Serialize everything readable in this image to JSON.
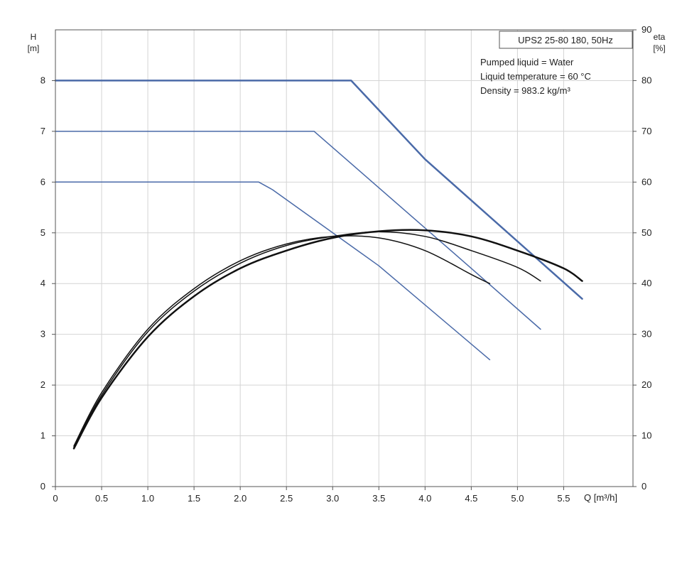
{
  "chart_data": {
    "type": "line",
    "model_label": "UPS2 25-80 180, 50Hz",
    "info_lines": [
      "Pumped liquid = Water",
      "Liquid temperature = 60 °C",
      "Density = 983.2 kg/m³"
    ],
    "left_axis": {
      "label_top": "H",
      "label_unit": "[m]",
      "range": [
        0,
        9.0
      ],
      "ticks": [
        0,
        1,
        2,
        3,
        4,
        5,
        6,
        7,
        8
      ]
    },
    "right_axis": {
      "label_top": "eta",
      "label_unit": "[%]",
      "range": [
        0,
        90
      ],
      "ticks": [
        0,
        10,
        20,
        30,
        40,
        50,
        60,
        70,
        80,
        90
      ]
    },
    "x_axis": {
      "label": "Q [m³/h]",
      "range": [
        0,
        6.25
      ],
      "ticks": [
        0,
        0.5,
        1.0,
        1.5,
        2.0,
        2.5,
        3.0,
        3.5,
        4.0,
        4.5,
        5.0,
        5.5
      ],
      "tick_labels": [
        "0",
        "0.5",
        "1.0",
        "1.5",
        "2.0",
        "2.5",
        "3.0",
        "3.5",
        "4.0",
        "4.5",
        "5.0",
        "5.5"
      ]
    },
    "grid": true,
    "colors": {
      "head": "#4a6aa8",
      "efficiency": "#111111",
      "grid": "#d4d4d4",
      "axis": "#555555"
    },
    "head_curves": [
      {
        "axis": "left",
        "width": 2.5,
        "points": [
          [
            0,
            8.0
          ],
          [
            3.2,
            8.0
          ],
          [
            4.0,
            6.45
          ],
          [
            5.7,
            3.7
          ]
        ]
      },
      {
        "axis": "left",
        "width": 1.5,
        "points": [
          [
            0,
            7.0
          ],
          [
            2.8,
            7.0
          ],
          [
            4.5,
            4.3
          ],
          [
            5.25,
            3.1
          ]
        ]
      },
      {
        "axis": "left",
        "width": 1.5,
        "points": [
          [
            0,
            6.0
          ],
          [
            2.2,
            6.0
          ],
          [
            2.35,
            5.85
          ],
          [
            3.5,
            4.35
          ],
          [
            4.7,
            2.5
          ]
        ]
      }
    ],
    "efficiency_curves": [
      {
        "axis": "right",
        "width": 2.5,
        "points": [
          [
            0.2,
            7.5
          ],
          [
            0.5,
            17.5
          ],
          [
            1.0,
            29.5
          ],
          [
            1.5,
            37.5
          ],
          [
            2.0,
            43
          ],
          [
            2.5,
            46.5
          ],
          [
            3.0,
            49
          ],
          [
            3.5,
            50.3
          ],
          [
            4.0,
            50.5
          ],
          [
            4.5,
            49.3
          ],
          [
            5.0,
            46.5
          ],
          [
            5.5,
            43
          ],
          [
            5.7,
            40.5
          ]
        ]
      },
      {
        "axis": "right",
        "width": 1.5,
        "points": [
          [
            0.2,
            7.8
          ],
          [
            0.5,
            18
          ],
          [
            1.0,
            30.5
          ],
          [
            1.5,
            38.5
          ],
          [
            2.0,
            44
          ],
          [
            2.5,
            47.5
          ],
          [
            3.0,
            49.3
          ],
          [
            3.5,
            50.2
          ],
          [
            4.0,
            49.3
          ],
          [
            4.5,
            46.5
          ],
          [
            5.0,
            43.2
          ],
          [
            5.25,
            40.5
          ]
        ]
      },
      {
        "axis": "right",
        "width": 1.5,
        "points": [
          [
            0.2,
            8
          ],
          [
            0.5,
            18.5
          ],
          [
            1.0,
            31
          ],
          [
            1.5,
            39
          ],
          [
            2.0,
            44.5
          ],
          [
            2.5,
            47.8
          ],
          [
            3.0,
            49.3
          ],
          [
            3.5,
            49
          ],
          [
            4.0,
            46.5
          ],
          [
            4.5,
            41.8
          ],
          [
            4.7,
            40
          ]
        ]
      }
    ]
  }
}
